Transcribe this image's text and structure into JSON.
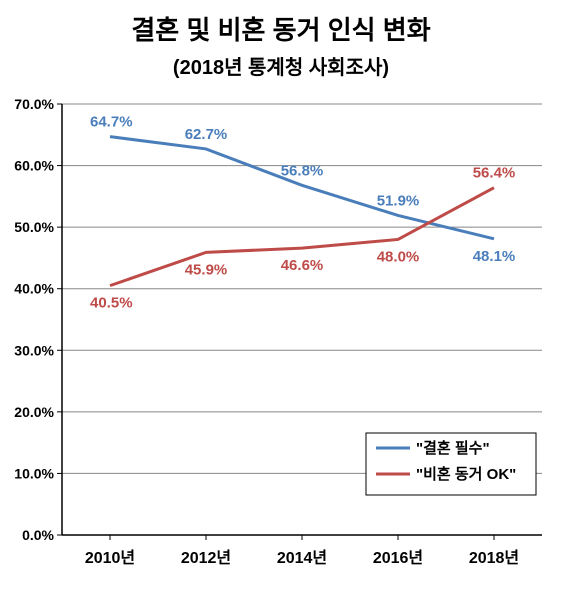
{
  "chart": {
    "type": "line",
    "title": "결혼 및 비혼 동거 인식 변화",
    "title_fontsize": 26,
    "subtitle": "(2018년 통계청 사회조사)",
    "subtitle_fontsize": 20,
    "background_color": "#ffffff",
    "plot_border_color": "#888888",
    "grid_color": "#888888",
    "axis_color": "#000000",
    "categories": [
      "2010년",
      "2012년",
      "2014년",
      "2016년",
      "2018년"
    ],
    "ylim": [
      0,
      70
    ],
    "ytick_step": 10,
    "ytick_format": "percent1",
    "yticks": [
      "0.0%",
      "10.0%",
      "20.0%",
      "30.0%",
      "40.0%",
      "50.0%",
      "60.0%",
      "70.0%"
    ],
    "series": [
      {
        "name": "\"결혼 필수\"",
        "color": "#4a7ebb",
        "line_width": 3,
        "values": [
          64.7,
          62.7,
          56.8,
          51.9,
          48.1
        ],
        "labels": [
          "64.7%",
          "62.7%",
          "56.8%",
          "51.9%",
          "48.1%"
        ],
        "label_position": "above"
      },
      {
        "name": "\"비혼 동거 OK\"",
        "color": "#be4b48",
        "line_width": 3,
        "values": [
          40.5,
          45.9,
          46.6,
          48.0,
          56.4
        ],
        "labels": [
          "40.5%",
          "45.9%",
          "46.6%",
          "48.0%",
          "56.4%"
        ],
        "label_position": "below"
      }
    ],
    "legend": {
      "position": "inside-bottom-right",
      "border_color": "#000000",
      "background": "#ffffff"
    },
    "label_fontsize": 15,
    "tick_fontsize": 14,
    "xtick_fontsize": 16
  }
}
